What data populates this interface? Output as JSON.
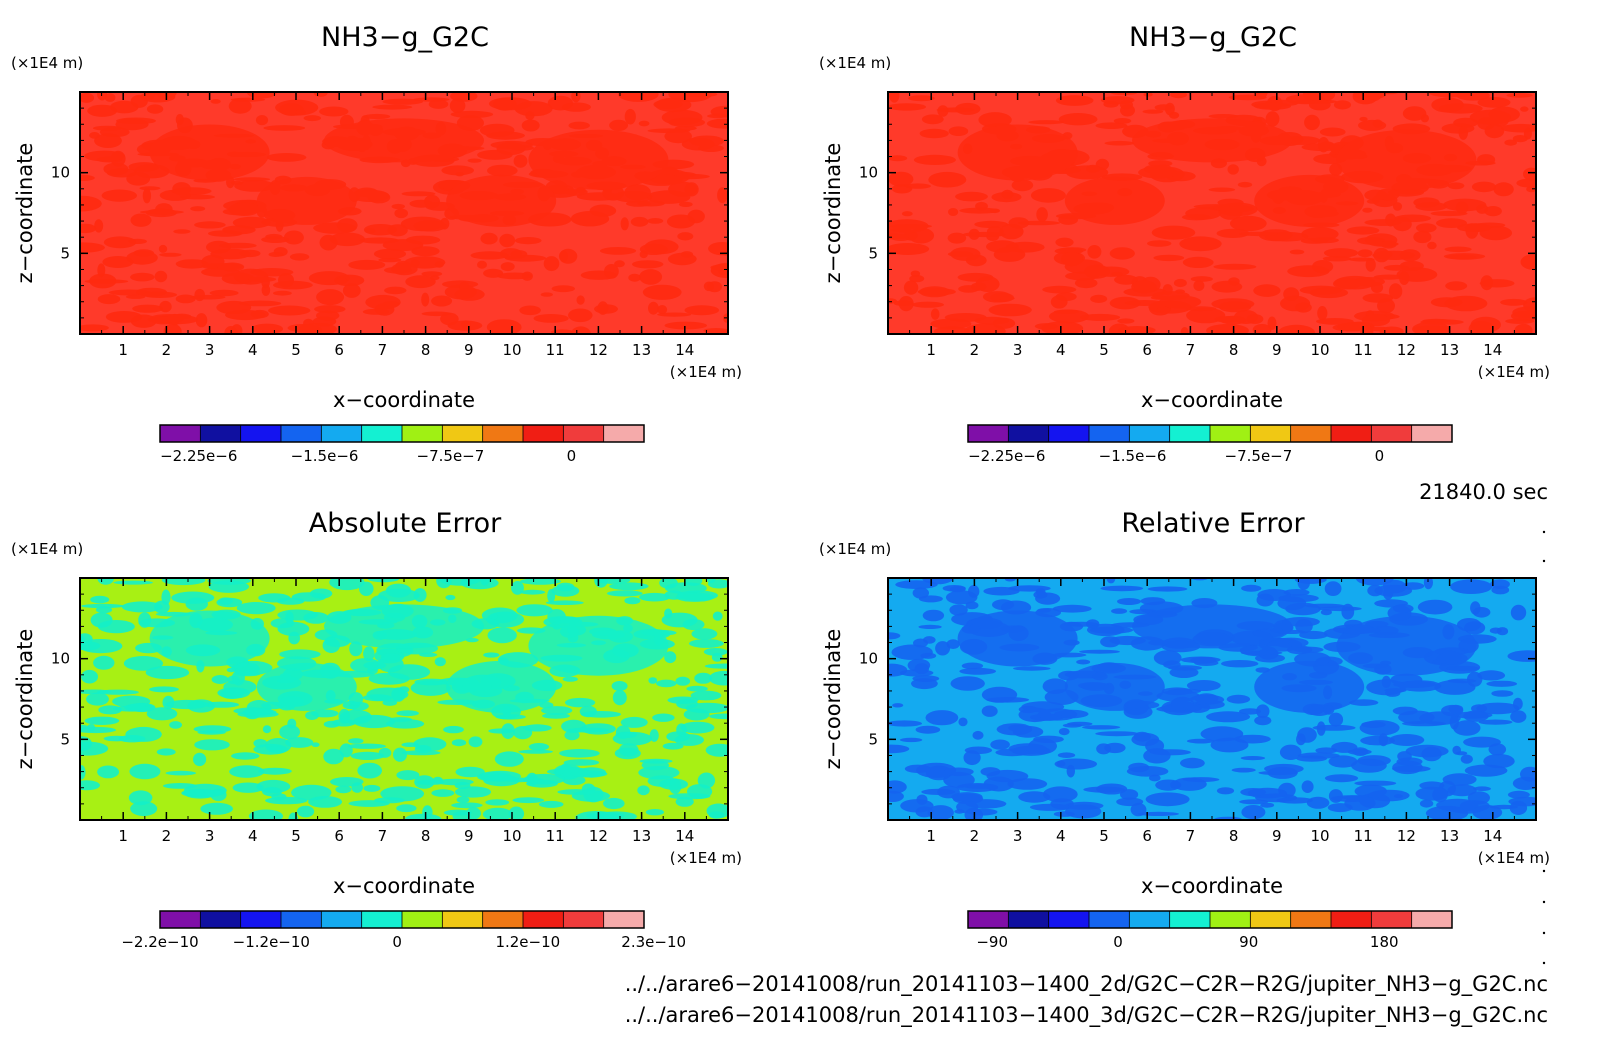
{
  "chart_data": [
    {
      "type": "heatmap",
      "title": "NH3−g_G2C",
      "xlabel": "x−coordinate",
      "ylabel": "z−coordinate",
      "x_unit": "(×1E4 m)",
      "y_unit": "(×1E4 m)",
      "xlim": [
        0,
        15
      ],
      "ylim": [
        0,
        15
      ],
      "x_ticks": [
        "1",
        "2",
        "3",
        "4",
        "5",
        "6",
        "7",
        "8",
        "9",
        "10",
        "11",
        "12",
        "13",
        "14"
      ],
      "y_ticks": [
        "5",
        "10"
      ],
      "dominant_value": 0,
      "colorbar": {
        "colors": [
          "#7f0fa8",
          "#1010a0",
          "#1414f0",
          "#1464f0",
          "#14aaf0",
          "#14f0d2",
          "#a0f014",
          "#f0c814",
          "#f07814",
          "#f01e14",
          "#f03c3c",
          "#f5aaaa"
        ],
        "tick_labels": [
          "−2.25e−6",
          "−1.5e−6",
          "−7.5e−7",
          "0"
        ]
      },
      "base_colors": [
        "#ff3a2a",
        "#ff2a10"
      ]
    },
    {
      "type": "heatmap",
      "title": "NH3−g_G2C",
      "xlabel": "x−coordinate",
      "ylabel": "z−coordinate",
      "x_unit": "(×1E4 m)",
      "y_unit": "(×1E4 m)",
      "xlim": [
        0,
        15
      ],
      "ylim": [
        0,
        15
      ],
      "x_ticks": [
        "1",
        "2",
        "3",
        "4",
        "5",
        "6",
        "7",
        "8",
        "9",
        "10",
        "11",
        "12",
        "13",
        "14"
      ],
      "y_ticks": [
        "5",
        "10"
      ],
      "dominant_value": 0,
      "colorbar": {
        "colors": [
          "#7f0fa8",
          "#1010a0",
          "#1414f0",
          "#1464f0",
          "#14aaf0",
          "#14f0d2",
          "#a0f014",
          "#f0c814",
          "#f07814",
          "#f01e14",
          "#f03c3c",
          "#f5aaaa"
        ],
        "tick_labels": [
          "−2.25e−6",
          "−1.5e−6",
          "−7.5e−7",
          "0"
        ]
      },
      "base_colors": [
        "#ff3a2a",
        "#ff2a10"
      ]
    },
    {
      "type": "heatmap",
      "title": "Absolute Error",
      "xlabel": "x−coordinate",
      "ylabel": "z−coordinate",
      "x_unit": "(×1E4 m)",
      "y_unit": "(×1E4 m)",
      "xlim": [
        0,
        15
      ],
      "ylim": [
        0,
        15
      ],
      "x_ticks": [
        "1",
        "2",
        "3",
        "4",
        "5",
        "6",
        "7",
        "8",
        "9",
        "10",
        "11",
        "12",
        "13",
        "14"
      ],
      "y_ticks": [
        "5",
        "10"
      ],
      "dominant_value": 0,
      "colorbar": {
        "colors": [
          "#7f0fa8",
          "#1010a0",
          "#1414f0",
          "#1464f0",
          "#14aaf0",
          "#14f0d2",
          "#a0f014",
          "#f0c814",
          "#f07814",
          "#f01e14",
          "#f03c3c",
          "#f5aaaa"
        ],
        "tick_labels": [
          "−2.2e−10",
          "−1.2e−10",
          "0",
          "1.2e−10",
          "2.3e−10"
        ]
      },
      "base_colors": [
        "#a8f014",
        "#14f0c8"
      ]
    },
    {
      "type": "heatmap",
      "title": "Relative Error",
      "xlabel": "x−coordinate",
      "ylabel": "z−coordinate",
      "x_unit": "(×1E4 m)",
      "y_unit": "(×1E4 m)",
      "xlim": [
        0,
        15
      ],
      "ylim": [
        0,
        15
      ],
      "x_ticks": [
        "1",
        "2",
        "3",
        "4",
        "5",
        "6",
        "7",
        "8",
        "9",
        "10",
        "11",
        "12",
        "13",
        "14"
      ],
      "y_ticks": [
        "5",
        "10"
      ],
      "dominant_value": 0,
      "colorbar": {
        "colors": [
          "#7f0fa8",
          "#1010a0",
          "#1414f0",
          "#1464f0",
          "#14aaf0",
          "#14f0d2",
          "#a0f014",
          "#f0c814",
          "#f07814",
          "#f01e14",
          "#f03c3c",
          "#f5aaaa"
        ],
        "tick_labels": [
          "−90",
          "0",
          "90",
          "180"
        ]
      },
      "base_colors": [
        "#14aaf0",
        "#1464f0"
      ]
    }
  ],
  "time_label": "21840.0 sec",
  "file_paths": [
    "../../arare6−20141008/run_20141103−1400_2d/G2C−C2R−R2G/jupiter_NH3−g_G2C.nc",
    "../../arare6−20141008/run_20141103−1400_3d/G2C−C2R−R2G/jupiter_NH3−g_G2C.nc"
  ]
}
